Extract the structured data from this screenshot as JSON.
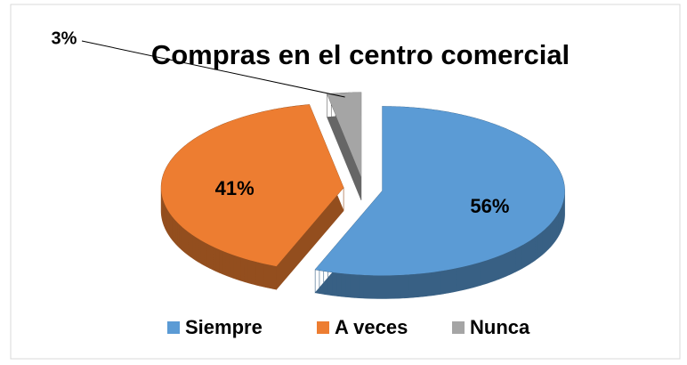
{
  "chart_data": {
    "type": "pie",
    "title": "Compras en el centro comercial",
    "categories": [
      "Siempre",
      "A veces",
      "Nunca"
    ],
    "values": [
      56,
      41,
      3
    ],
    "value_labels": [
      "56%",
      "41%",
      "3%"
    ],
    "colors": [
      "#5b9bd5",
      "#ed7d31",
      "#a5a5a5"
    ],
    "legend": "bottom"
  }
}
